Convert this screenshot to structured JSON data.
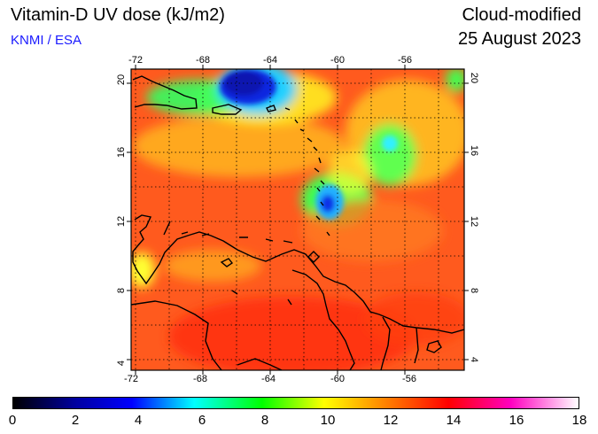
{
  "header": {
    "title": "Vitamin-D UV dose (kJ/m2)",
    "source": "KNMI / ESA",
    "product": "Cloud-modified",
    "date": "25 August 2023"
  },
  "map": {
    "lon_ticks": [
      "-72",
      "-68",
      "-64",
      "-60",
      "-56"
    ],
    "lat_ticks": [
      "4",
      "8",
      "12",
      "16",
      "20"
    ],
    "gridlines": "dotted",
    "colors": {
      "background_field": "#ff5a1e",
      "ocean_shade": "#ff9a20",
      "land_shade": "#ff3010",
      "low_dose_blue": "#0a1ad8",
      "mid_dose_cyan": "#20e0ff",
      "mid_dose_green": "#30ff60",
      "coastline": "#000000"
    }
  },
  "colorbar": {
    "labels": [
      "0",
      "2",
      "4",
      "6",
      "8",
      "10",
      "12",
      "14",
      "16",
      "18"
    ],
    "min": 0,
    "max": 18
  }
}
